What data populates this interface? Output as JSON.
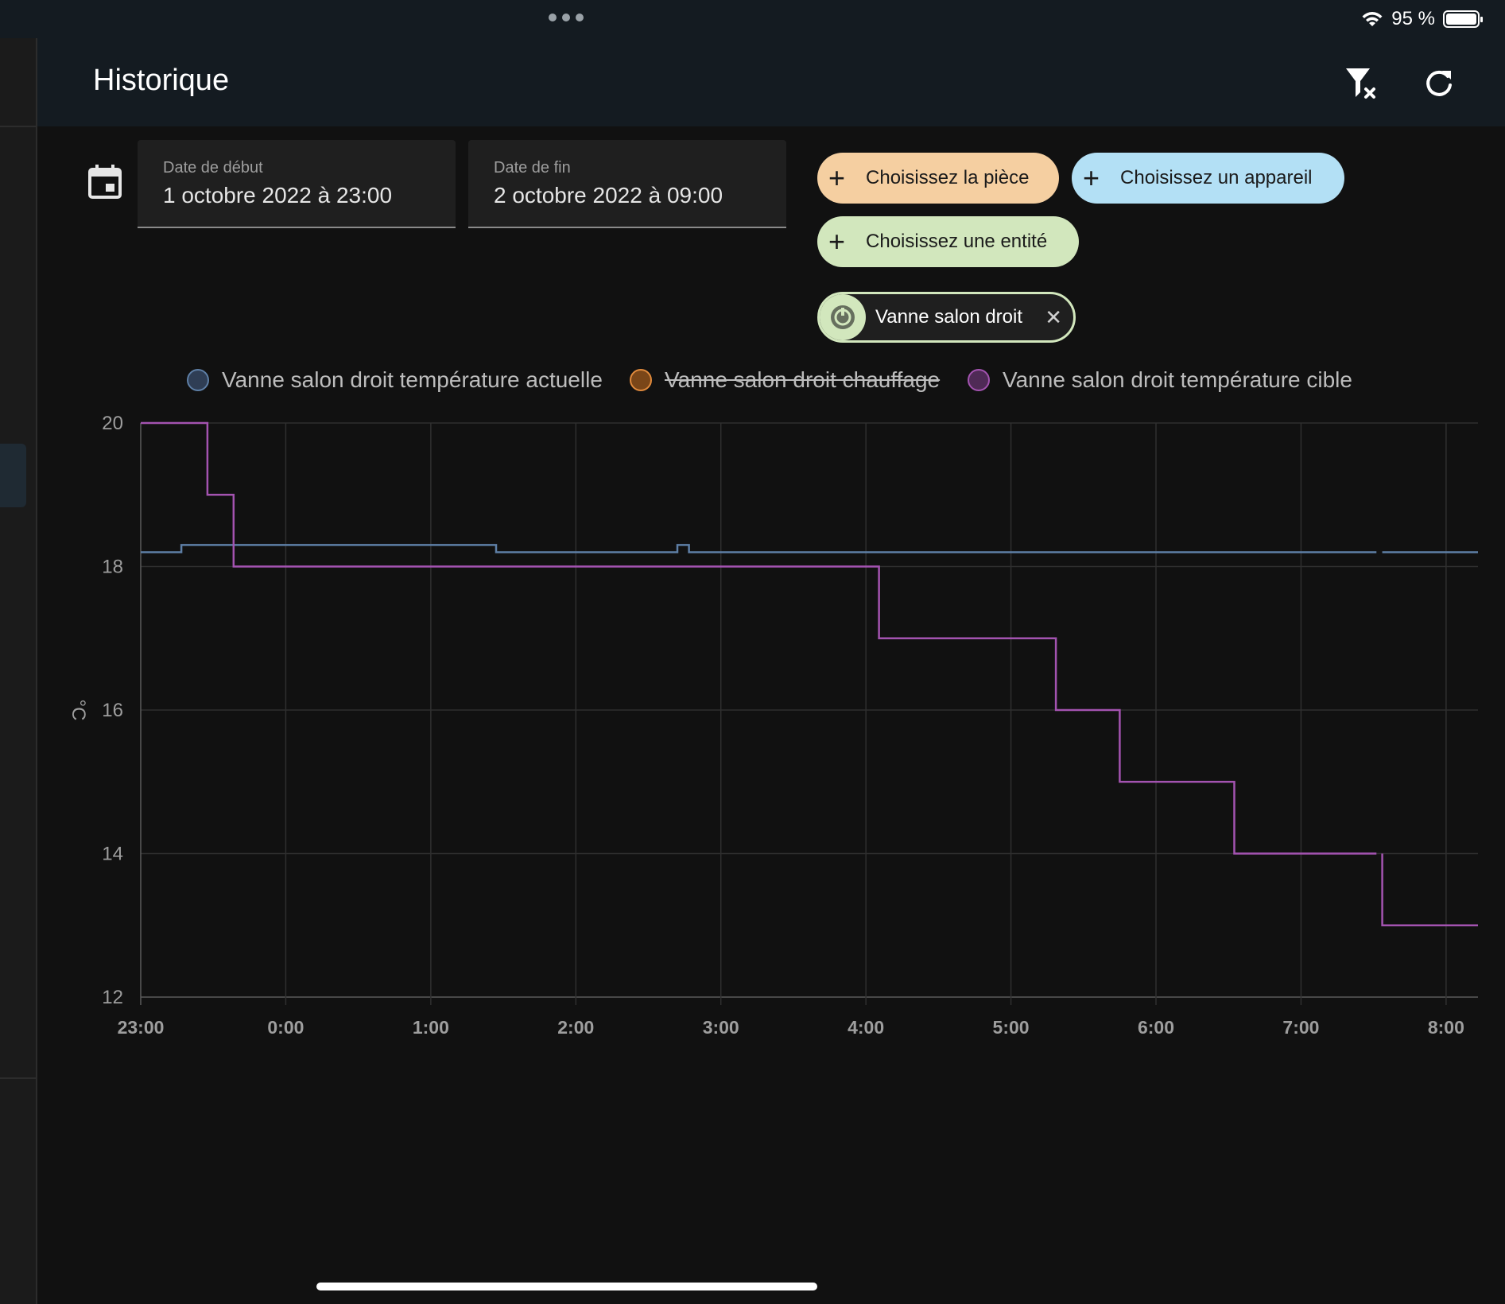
{
  "status_bar": {
    "battery": "95 %"
  },
  "header": {
    "title": "Historique",
    "clear_filter_icon": "filter-remove-icon",
    "refresh_icon": "refresh-icon"
  },
  "date_range": {
    "start": {
      "label": "Date de début",
      "value": "1 octobre 2022 à 23:00"
    },
    "end": {
      "label": "Date de fin",
      "value": "2 octobre 2022 à 09:00"
    }
  },
  "pickers": {
    "room": "Choisissez la pièce",
    "device": "Choisissez un appareil",
    "entity": "Choisissez une entité"
  },
  "selected_device": {
    "name": "Vanne salon droit"
  },
  "colors": {
    "room_chip": "#f5cfa1",
    "device_chip": "#b3e0f5",
    "entity_chip": "#d2e7bd"
  },
  "chart_data": {
    "type": "line",
    "ylabel": "°C",
    "ylim": [
      12,
      20
    ],
    "yticks": [
      12,
      14,
      16,
      18,
      20
    ],
    "xlim": [
      -1,
      8.22
    ],
    "xticks": [
      {
        "v": -1,
        "label": "23:00"
      },
      {
        "v": 0,
        "label": "0:00"
      },
      {
        "v": 1,
        "label": "1:00"
      },
      {
        "v": 2,
        "label": "2:00"
      },
      {
        "v": 3,
        "label": "3:00"
      },
      {
        "v": 4,
        "label": "4:00"
      },
      {
        "v": 5,
        "label": "5:00"
      },
      {
        "v": 6,
        "label": "6:00"
      },
      {
        "v": 7,
        "label": "7:00"
      },
      {
        "v": 8,
        "label": "8:00"
      }
    ],
    "grid": true,
    "legend_position": "top",
    "series": [
      {
        "name": "Vanne salon droit température actuelle",
        "color": "#5e7fa6",
        "hidden": false,
        "step": true,
        "segments": [
          [
            [
              -1,
              18.2
            ],
            [
              -0.72,
              18.2
            ],
            [
              -0.72,
              18.3
            ],
            [
              1.45,
              18.3
            ],
            [
              1.45,
              18.2
            ],
            [
              2.7,
              18.2
            ],
            [
              2.7,
              18.3
            ],
            [
              2.78,
              18.3
            ],
            [
              2.78,
              18.2
            ],
            [
              7.52,
              18.2
            ]
          ],
          [
            [
              7.56,
              18.2
            ],
            [
              8.22,
              18.2
            ]
          ]
        ]
      },
      {
        "name": "Vanne salon droit chauffage",
        "color": "#e08a3c",
        "hidden": true,
        "segments": []
      },
      {
        "name": "Vanne salon droit température cible",
        "color": "#a353b0",
        "hidden": false,
        "step": true,
        "segments": [
          [
            [
              -1,
              20
            ],
            [
              -0.54,
              20
            ],
            [
              -0.54,
              19
            ],
            [
              -0.36,
              19
            ],
            [
              -0.36,
              18
            ],
            [
              4.09,
              18
            ],
            [
              4.09,
              17
            ],
            [
              5.31,
              17
            ],
            [
              5.31,
              16
            ],
            [
              5.75,
              16
            ],
            [
              5.75,
              15
            ],
            [
              6.54,
              15
            ],
            [
              6.54,
              14
            ],
            [
              7.52,
              14
            ]
          ],
          [
            [
              7.56,
              14
            ],
            [
              7.56,
              13
            ],
            [
              8.22,
              13
            ]
          ]
        ]
      }
    ]
  }
}
